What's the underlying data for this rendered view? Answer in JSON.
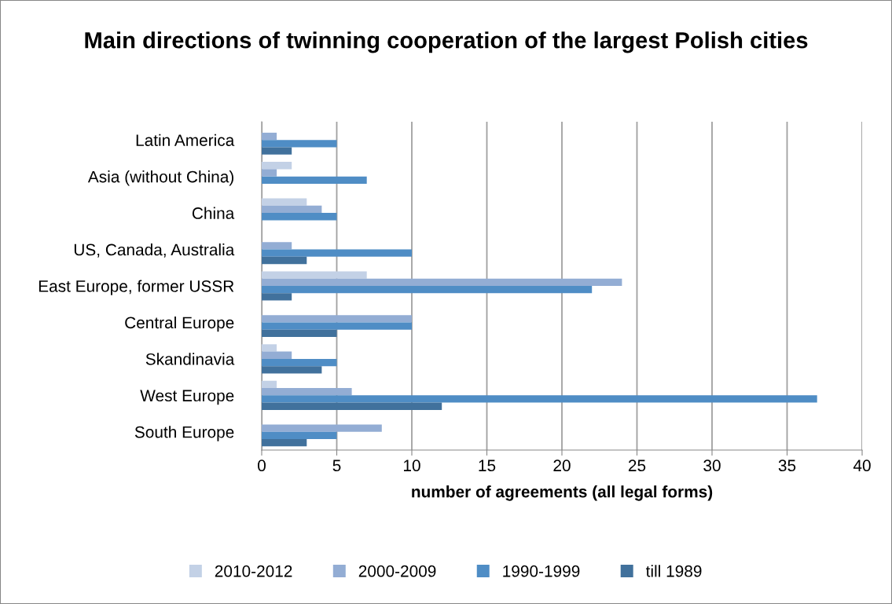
{
  "chart_data": {
    "type": "bar",
    "orientation": "horizontal",
    "title": "Main directions of twinning cooperation of the largest Polish cities",
    "xlabel": "number of agreements (all legal forms)",
    "categories": [
      "Latin America",
      "Asia (without China)",
      "China",
      "US, Canada, Australia",
      "East Europe, former USSR",
      "Central Europe",
      "Skandinavia",
      "West Europe",
      "South Europe"
    ],
    "series": [
      {
        "name": "2010-2012",
        "color": "#c3d1e6",
        "values": [
          0,
          2,
          3,
          0,
          7,
          0,
          1,
          1,
          0
        ]
      },
      {
        "name": "2000-2009",
        "color": "#93add4",
        "values": [
          1,
          1,
          4,
          2,
          24,
          10,
          2,
          6,
          8
        ]
      },
      {
        "name": "1990-1999",
        "color": "#4f8dc5",
        "values": [
          5,
          7,
          5,
          10,
          22,
          10,
          5,
          37,
          5
        ]
      },
      {
        "name": "till 1989",
        "color": "#41719c",
        "values": [
          2,
          0,
          0,
          3,
          2,
          5,
          4,
          12,
          3
        ]
      }
    ],
    "xlim": [
      0,
      40
    ],
    "xticks": [
      0,
      5,
      10,
      15,
      20,
      25,
      30,
      35,
      40
    ],
    "grid": "x",
    "legend": "bottom"
  }
}
